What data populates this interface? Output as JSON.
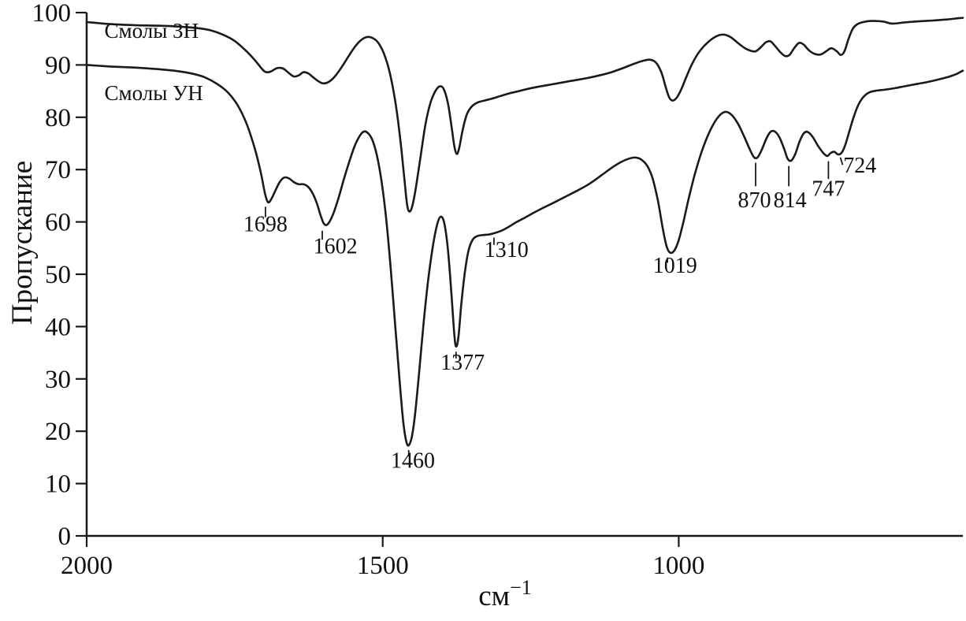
{
  "chart": {
    "background_color": "#ffffff",
    "line_color": "#1a1a1a"
  },
  "chart_data": {
    "type": "line",
    "title": "",
    "xlabel_base": "см",
    "xlabel_sup": "−1",
    "ylabel": "Пропускание",
    "x_axis_reversed": true,
    "x_range": [
      2000,
      520
    ],
    "y_range": [
      0,
      100
    ],
    "x_ticks": [
      2000,
      1500,
      1000
    ],
    "y_ticks": [
      0,
      10,
      20,
      30,
      40,
      50,
      60,
      70,
      80,
      90,
      100
    ],
    "grid": false,
    "legend_position": "inline-labels",
    "series": [
      {
        "name": "Смолы ЗН",
        "label_pos": {
          "x": 1970,
          "y": 95.2
        },
        "points": [
          [
            2000,
            98.2
          ],
          [
            1960,
            97.8
          ],
          [
            1920,
            97.6
          ],
          [
            1880,
            97.5
          ],
          [
            1840,
            97.3
          ],
          [
            1810,
            97.0
          ],
          [
            1790,
            96.6
          ],
          [
            1770,
            95.8
          ],
          [
            1750,
            94.6
          ],
          [
            1730,
            92.6
          ],
          [
            1715,
            90.8
          ],
          [
            1702,
            89.0
          ],
          [
            1695,
            88.6
          ],
          [
            1688,
            88.8
          ],
          [
            1678,
            89.4
          ],
          [
            1668,
            89.3
          ],
          [
            1658,
            88.4
          ],
          [
            1650,
            87.8
          ],
          [
            1642,
            88.0
          ],
          [
            1634,
            88.6
          ],
          [
            1626,
            88.4
          ],
          [
            1618,
            87.7
          ],
          [
            1610,
            87.0
          ],
          [
            1602,
            86.5
          ],
          [
            1594,
            86.6
          ],
          [
            1586,
            87.2
          ],
          [
            1578,
            88.2
          ],
          [
            1568,
            89.8
          ],
          [
            1558,
            91.6
          ],
          [
            1548,
            93.3
          ],
          [
            1538,
            94.6
          ],
          [
            1528,
            95.3
          ],
          [
            1518,
            95.2
          ],
          [
            1508,
            94.3
          ],
          [
            1498,
            92.2
          ],
          [
            1488,
            88.5
          ],
          [
            1478,
            82.5
          ],
          [
            1470,
            75.5
          ],
          [
            1464,
            69.0
          ],
          [
            1459,
            63.5
          ],
          [
            1455,
            62.0
          ],
          [
            1450,
            63.0
          ],
          [
            1444,
            66.5
          ],
          [
            1436,
            72.5
          ],
          [
            1428,
            78.5
          ],
          [
            1420,
            82.5
          ],
          [
            1412,
            84.8
          ],
          [
            1404,
            85.9
          ],
          [
            1397,
            85.4
          ],
          [
            1390,
            82.8
          ],
          [
            1384,
            78.5
          ],
          [
            1379,
            74.5
          ],
          [
            1375,
            73.0
          ],
          [
            1371,
            74.0
          ],
          [
            1365,
            77.5
          ],
          [
            1358,
            80.5
          ],
          [
            1350,
            82.0
          ],
          [
            1340,
            82.8
          ],
          [
            1328,
            83.2
          ],
          [
            1314,
            83.6
          ],
          [
            1300,
            84.1
          ],
          [
            1285,
            84.6
          ],
          [
            1270,
            85.0
          ],
          [
            1252,
            85.5
          ],
          [
            1234,
            85.9
          ],
          [
            1214,
            86.3
          ],
          [
            1194,
            86.7
          ],
          [
            1174,
            87.1
          ],
          [
            1154,
            87.5
          ],
          [
            1134,
            88.0
          ],
          [
            1114,
            88.6
          ],
          [
            1094,
            89.4
          ],
          [
            1076,
            90.2
          ],
          [
            1060,
            90.8
          ],
          [
            1048,
            91.0
          ],
          [
            1038,
            90.4
          ],
          [
            1029,
            88.5
          ],
          [
            1022,
            85.8
          ],
          [
            1016,
            83.8
          ],
          [
            1010,
            83.2
          ],
          [
            1003,
            83.8
          ],
          [
            995,
            85.5
          ],
          [
            986,
            88.0
          ],
          [
            976,
            90.5
          ],
          [
            964,
            92.7
          ],
          [
            950,
            94.4
          ],
          [
            936,
            95.5
          ],
          [
            924,
            95.8
          ],
          [
            912,
            95.3
          ],
          [
            900,
            94.2
          ],
          [
            888,
            93.2
          ],
          [
            878,
            92.7
          ],
          [
            870,
            92.6
          ],
          [
            862,
            93.3
          ],
          [
            853,
            94.3
          ],
          [
            845,
            94.5
          ],
          [
            837,
            93.6
          ],
          [
            828,
            92.4
          ],
          [
            820,
            91.7
          ],
          [
            813,
            91.9
          ],
          [
            805,
            93.2
          ],
          [
            797,
            94.2
          ],
          [
            789,
            93.9
          ],
          [
            780,
            92.8
          ],
          [
            770,
            92.1
          ],
          [
            760,
            92.0
          ],
          [
            751,
            92.6
          ],
          [
            742,
            93.2
          ],
          [
            733,
            92.6
          ],
          [
            726,
            91.9
          ],
          [
            720,
            92.6
          ],
          [
            713,
            95.0
          ],
          [
            706,
            96.9
          ],
          [
            698,
            97.8
          ],
          [
            688,
            98.2
          ],
          [
            675,
            98.4
          ],
          [
            655,
            98.3
          ],
          [
            640,
            97.9
          ],
          [
            620,
            98.1
          ],
          [
            600,
            98.3
          ],
          [
            570,
            98.5
          ],
          [
            545,
            98.7
          ],
          [
            530,
            98.9
          ],
          [
            520,
            99.0
          ]
        ]
      },
      {
        "name": "Смолы УН",
        "label_pos": {
          "x": 1970,
          "y": 83.3
        },
        "points": [
          [
            2000,
            90.0
          ],
          [
            1960,
            89.7
          ],
          [
            1920,
            89.5
          ],
          [
            1880,
            89.2
          ],
          [
            1845,
            88.8
          ],
          [
            1820,
            88.3
          ],
          [
            1800,
            87.6
          ],
          [
            1780,
            86.4
          ],
          [
            1762,
            84.8
          ],
          [
            1745,
            82.3
          ],
          [
            1730,
            78.8
          ],
          [
            1716,
            74.0
          ],
          [
            1706,
            69.5
          ],
          [
            1699,
            65.5
          ],
          [
            1694,
            63.8
          ],
          [
            1689,
            64.2
          ],
          [
            1682,
            65.8
          ],
          [
            1674,
            67.6
          ],
          [
            1666,
            68.5
          ],
          [
            1658,
            68.3
          ],
          [
            1650,
            67.6
          ],
          [
            1642,
            67.2
          ],
          [
            1634,
            67.2
          ],
          [
            1626,
            66.7
          ],
          [
            1618,
            65.4
          ],
          [
            1611,
            63.5
          ],
          [
            1605,
            61.3
          ],
          [
            1600,
            59.8
          ],
          [
            1595,
            59.4
          ],
          [
            1589,
            60.2
          ],
          [
            1582,
            62.0
          ],
          [
            1574,
            64.8
          ],
          [
            1566,
            68.0
          ],
          [
            1557,
            71.3
          ],
          [
            1548,
            74.3
          ],
          [
            1540,
            76.2
          ],
          [
            1533,
            77.2
          ],
          [
            1526,
            77.1
          ],
          [
            1518,
            75.8
          ],
          [
            1510,
            72.8
          ],
          [
            1502,
            67.8
          ],
          [
            1494,
            60.5
          ],
          [
            1486,
            50.5
          ],
          [
            1478,
            39.0
          ],
          [
            1471,
            29.0
          ],
          [
            1465,
            21.5
          ],
          [
            1460,
            18.0
          ],
          [
            1456,
            17.3
          ],
          [
            1451,
            18.8
          ],
          [
            1446,
            22.5
          ],
          [
            1439,
            30.5
          ],
          [
            1431,
            40.5
          ],
          [
            1423,
            49.0
          ],
          [
            1415,
            55.5
          ],
          [
            1408,
            59.5
          ],
          [
            1402,
            61.0
          ],
          [
            1396,
            59.8
          ],
          [
            1390,
            55.0
          ],
          [
            1384,
            46.5
          ],
          [
            1379,
            38.5
          ],
          [
            1376,
            36.2
          ],
          [
            1372,
            38.0
          ],
          [
            1367,
            44.5
          ],
          [
            1361,
            50.5
          ],
          [
            1355,
            54.5
          ],
          [
            1348,
            56.6
          ],
          [
            1340,
            57.3
          ],
          [
            1330,
            57.5
          ],
          [
            1320,
            57.6
          ],
          [
            1310,
            57.9
          ],
          [
            1300,
            58.3
          ],
          [
            1288,
            59.0
          ],
          [
            1275,
            59.9
          ],
          [
            1260,
            60.8
          ],
          [
            1244,
            61.8
          ],
          [
            1227,
            62.8
          ],
          [
            1209,
            63.8
          ],
          [
            1190,
            64.9
          ],
          [
            1171,
            66.0
          ],
          [
            1152,
            67.2
          ],
          [
            1133,
            68.7
          ],
          [
            1115,
            70.2
          ],
          [
            1098,
            71.4
          ],
          [
            1084,
            72.1
          ],
          [
            1073,
            72.3
          ],
          [
            1063,
            71.9
          ],
          [
            1053,
            70.7
          ],
          [
            1044,
            68.3
          ],
          [
            1035,
            64.0
          ],
          [
            1027,
            58.8
          ],
          [
            1020,
            55.2
          ],
          [
            1014,
            54.1
          ],
          [
            1007,
            54.6
          ],
          [
            1000,
            56.5
          ],
          [
            992,
            60.0
          ],
          [
            983,
            64.5
          ],
          [
            973,
            69.0
          ],
          [
            961,
            73.5
          ],
          [
            948,
            77.2
          ],
          [
            935,
            79.8
          ],
          [
            923,
            81.0
          ],
          [
            912,
            80.6
          ],
          [
            900,
            78.8
          ],
          [
            889,
            76.2
          ],
          [
            880,
            73.9
          ],
          [
            873,
            72.4
          ],
          [
            867,
            72.3
          ],
          [
            860,
            73.7
          ],
          [
            852,
            75.9
          ],
          [
            845,
            77.2
          ],
          [
            838,
            77.3
          ],
          [
            830,
            76.2
          ],
          [
            822,
            74.0
          ],
          [
            816,
            72.1
          ],
          [
            810,
            71.7
          ],
          [
            803,
            73.0
          ],
          [
            796,
            75.3
          ],
          [
            789,
            76.9
          ],
          [
            782,
            77.2
          ],
          [
            774,
            76.3
          ],
          [
            765,
            74.6
          ],
          [
            756,
            73.2
          ],
          [
            749,
            72.6
          ],
          [
            743,
            73.2
          ],
          [
            737,
            73.4
          ],
          [
            731,
            72.9
          ],
          [
            725,
            73.2
          ],
          [
            719,
            74.6
          ],
          [
            712,
            77.2
          ],
          [
            704,
            80.2
          ],
          [
            696,
            82.5
          ],
          [
            687,
            84.0
          ],
          [
            677,
            84.8
          ],
          [
            665,
            85.1
          ],
          [
            650,
            85.3
          ],
          [
            633,
            85.6
          ],
          [
            615,
            86.0
          ],
          [
            596,
            86.4
          ],
          [
            577,
            86.8
          ],
          [
            558,
            87.3
          ],
          [
            542,
            87.8
          ],
          [
            530,
            88.3
          ],
          [
            522,
            88.8
          ],
          [
            520,
            88.9
          ]
        ]
      }
    ],
    "annotations": [
      {
        "label": "1698",
        "x": 1698,
        "y1": 62.9,
        "y2": 60.9,
        "tx": 1698,
        "ty": 58.2,
        "anchor": "middle"
      },
      {
        "label": "1602",
        "x": 1602,
        "y1": 58.3,
        "y2": 56.6,
        "tx": 1580,
        "ty": 54.0,
        "anchor": "middle"
      },
      {
        "label": "1460",
        "x": 1456,
        "y1": 16.4,
        "y2": 15.2,
        "tx": 1449,
        "ty": 13.0,
        "anchor": "middle"
      },
      {
        "label": "1377",
        "x": 1376,
        "y1": 35.2,
        "y2": 33.9,
        "tx": 1365,
        "ty": 31.8,
        "anchor": "middle"
      },
      {
        "label": "1310",
        "x": 1312,
        "y1": 57.0,
        "y2": 55.6,
        "tx": 1291,
        "ty": 53.3,
        "anchor": "middle"
      },
      {
        "label": "1019",
        "x": 1019,
        "y1": 53.2,
        "y2": 52.2,
        "tx": 1006,
        "ty": 50.3,
        "anchor": "middle"
      },
      {
        "label": "870",
        "x": 870,
        "y1": 71.3,
        "y2": 66.8,
        "tx": 872,
        "ty": 62.8,
        "anchor": "middle"
      },
      {
        "label": "814",
        "x": 814,
        "y1": 70.7,
        "y2": 66.8,
        "tx": 812,
        "ty": 62.8,
        "anchor": "middle"
      },
      {
        "label": "747",
        "x": 747,
        "y1": 71.6,
        "y2": 68.2,
        "tx": 747,
        "ty": 65.0,
        "anchor": "middle"
      },
      {
        "label": "724",
        "x": 727,
        "x2": 723,
        "y1": 72.3,
        "y2": 70.9,
        "tx": 722,
        "ty": 69.4,
        "anchor": "start"
      }
    ]
  }
}
